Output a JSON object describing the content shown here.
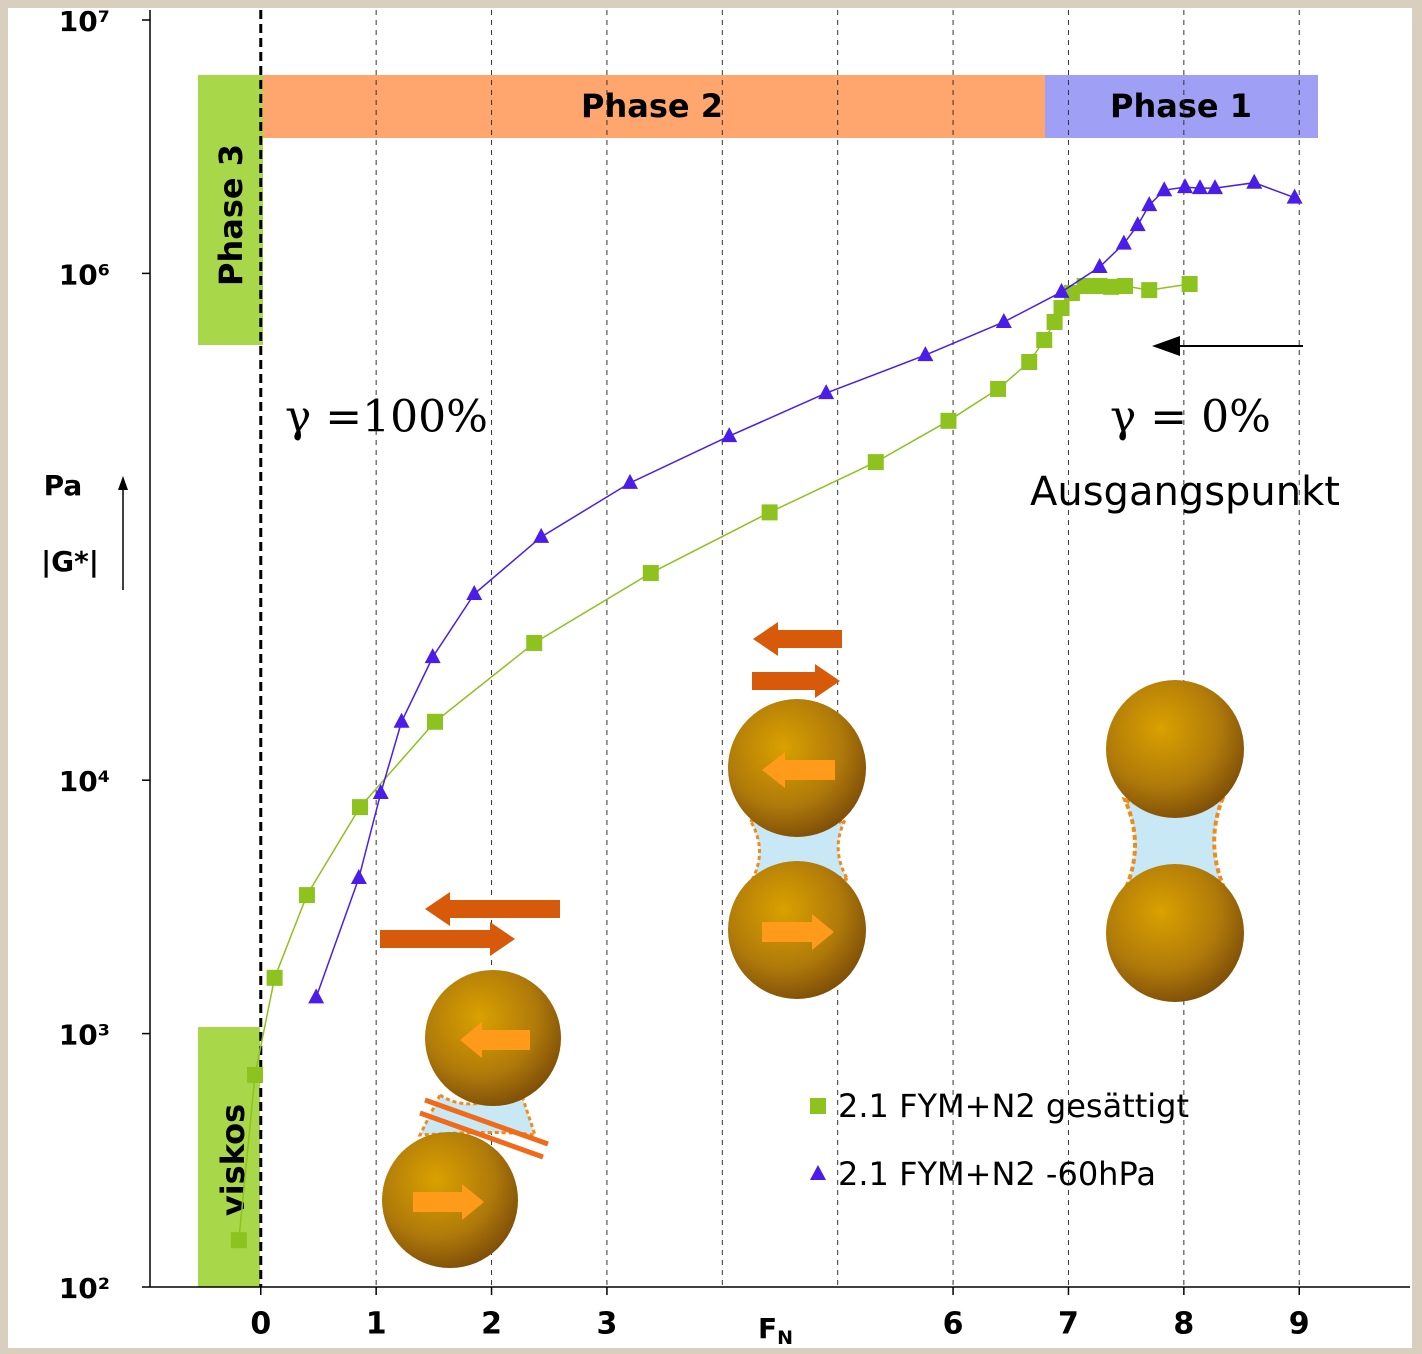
{
  "chart_data": {
    "type": "line",
    "y_label": "|G*|",
    "y_unit": "Pa",
    "x_label": "F",
    "x_label_sub": "N",
    "log_y": true,
    "xlim": [
      -0.96,
      9.96
    ],
    "ylim": [
      100,
      10000000
    ],
    "xticks": [
      0,
      1,
      2,
      3,
      6,
      7,
      8,
      9
    ],
    "x_grid_lines": [
      1,
      2,
      3,
      4,
      5,
      6,
      7,
      8,
      9
    ],
    "yticks": [
      {
        "value": 100,
        "label": "10²"
      },
      {
        "value": 1000,
        "label": "10³"
      },
      {
        "value": 10000,
        "label": "10⁴"
      },
      {
        "value": 1000000,
        "label": "10⁶"
      },
      {
        "value": 10000000,
        "label": "10⁷"
      }
    ],
    "series": [
      {
        "name": "2.1 FYM+N2 gesättigt",
        "color": "#8dc21f",
        "marker": "square",
        "x": [
          -0.19,
          -0.05,
          0.12,
          0.4,
          0.86,
          1.51,
          2.37,
          3.38,
          4.41,
          5.33,
          5.96,
          6.39,
          6.66,
          6.79,
          6.88,
          6.94,
          7.03,
          7.14,
          7.27,
          7.37,
          7.49,
          7.7,
          8.05
        ],
        "values": [
          153,
          687,
          1660,
          3520,
          7830,
          17000,
          34800,
          65700,
          114000,
          180000,
          262000,
          350000,
          447000,
          546000,
          643000,
          730000,
          837000,
          892000,
          892000,
          885000,
          892000,
          859000,
          908000
        ]
      },
      {
        "name": "2.1 FYM+N2 -60hPa",
        "color": "#4a1ee8",
        "marker": "triangle",
        "x": [
          0.48,
          0.85,
          1.04,
          1.22,
          1.49,
          1.85,
          2.43,
          3.2,
          4.06,
          4.9,
          5.76,
          6.44,
          6.94,
          7.27,
          7.48,
          7.6,
          7.7,
          7.83,
          8.01,
          8.14,
          8.27,
          8.61,
          8.96
        ],
        "values": [
          1390,
          4110,
          8900,
          17000,
          30600,
          54300,
          91200,
          149000,
          228000,
          337000,
          476000,
          643000,
          845000,
          1060000,
          1310000,
          1550000,
          1860000,
          2130000,
          2190000,
          2170000,
          2170000,
          2280000,
          1990000
        ]
      }
    ],
    "annotations": {
      "phase1": "Phase 1",
      "phase2": "Phase 2",
      "phase3": "Phase 3",
      "viscous": "viskos",
      "gamma_100": "γ =100%",
      "gamma_0": "γ = 0%",
      "start": "Ausgangspunkt"
    }
  }
}
